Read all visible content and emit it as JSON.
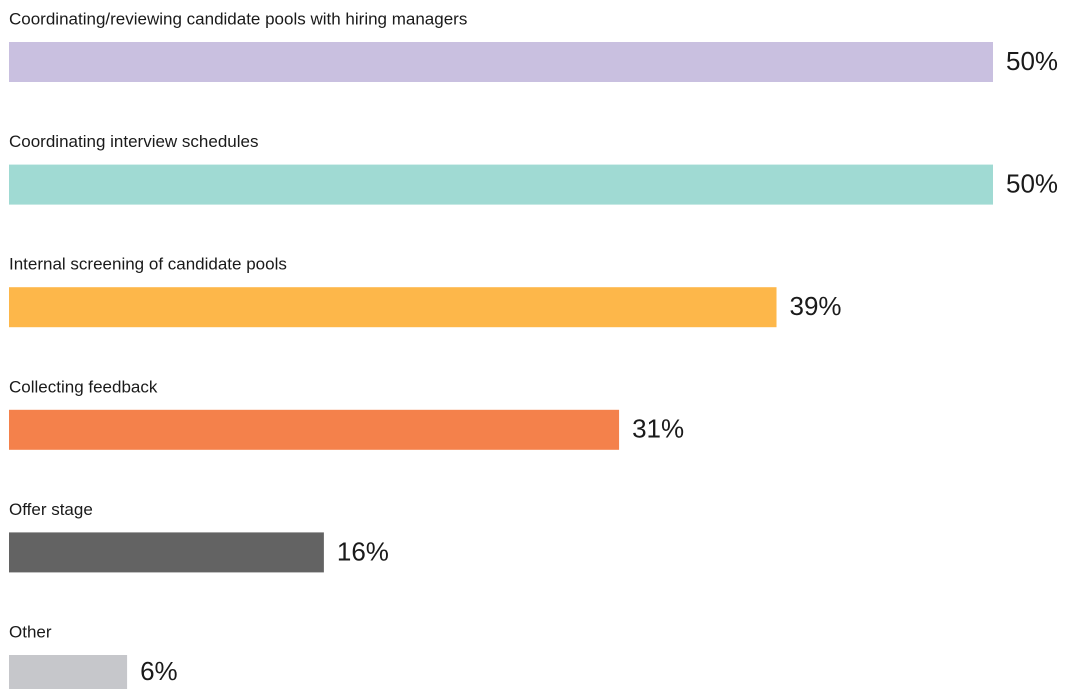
{
  "chart_data": {
    "type": "bar",
    "categories": [
      "Coordinating/reviewing candidate pools with hiring managers",
      "Coordinating interview schedules",
      "Internal screening of candidate pools",
      "Collecting feedback",
      "Offer stage",
      "Other"
    ],
    "values": [
      50,
      50,
      39,
      31,
      16,
      6
    ],
    "value_labels": [
      "50%",
      "50%",
      "39%",
      "31%",
      "16%",
      "6%"
    ],
    "colors": [
      "#c9c0e0",
      "#a0dad3",
      "#fdb74a",
      "#f4814b",
      "#636363",
      "#c6c7cb"
    ],
    "orientation": "horizontal"
  }
}
